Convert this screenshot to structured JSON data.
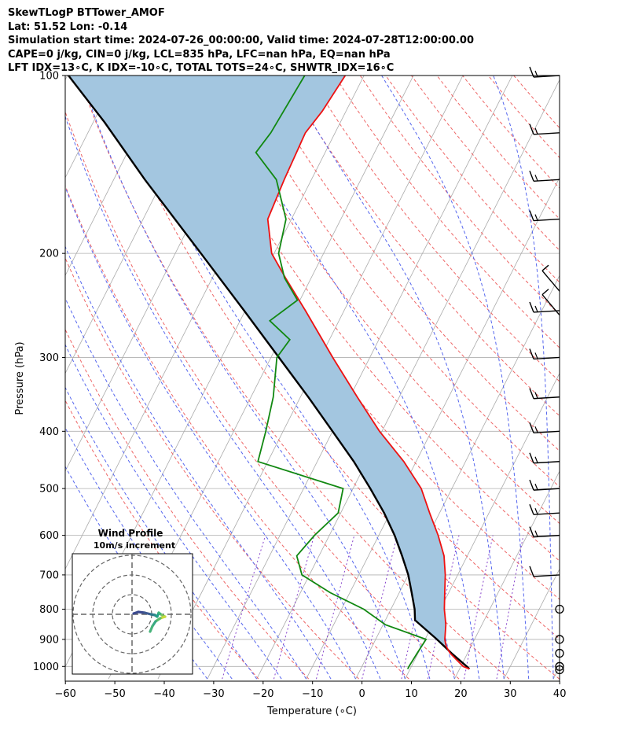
{
  "header": {
    "lines": [
      "SkewTLogP BTTower_AMOF",
      "Lat: 51.52   Lon: -0.14",
      "Simulation start time: 2024-07-26_00:00:00, Valid time: 2024-07-28T12:00:00.00",
      "CAPE=0 j/kg, CIN=0 j/kg, LCL=835 hPa, LFC=nan hPa, EQ=nan hPa",
      "LFT IDX=13∘C, K IDX=-10∘C, TOTAL TOTS=24∘C, SHWTR_IDX=16∘C"
    ]
  },
  "chart_data": {
    "type": "skewt",
    "xlabel": "Temperature (∘C)",
    "ylabel": "Pressure (hPa)",
    "xlim": [
      -60,
      40
    ],
    "ylim": [
      1050,
      100
    ],
    "x_ticks": [
      -60,
      -50,
      -40,
      -30,
      -20,
      -10,
      0,
      10,
      20,
      30,
      40
    ],
    "y_ticks": [
      100,
      200,
      300,
      400,
      500,
      600,
      700,
      800,
      900,
      1000
    ],
    "y_scale": "log",
    "grid": true,
    "colors": {
      "temperature": "#ee1111",
      "dewpoint": "#118811",
      "parcel": "#000000",
      "cape_fill": "#a3c6e0",
      "dry_adiabats": "#ee6666",
      "moist_adiabats": "#5566ee",
      "mixing_ratio": "#8844cc",
      "isotherms": "#aaaaaa"
    },
    "series": [
      {
        "key": "temperature",
        "pressure": [
          1010,
          1000,
          975,
          950,
          925,
          900,
          850,
          800,
          750,
          700,
          650,
          600,
          550,
          500,
          450,
          400,
          350,
          300,
          250,
          220,
          200,
          175,
          150,
          125,
          115,
          100
        ],
        "temperature": [
          22,
          20.5,
          18.5,
          16.5,
          15,
          14,
          12.7,
          10.8,
          9.2,
          7.5,
          5.3,
          2.0,
          -2.0,
          -6.2,
          -12.5,
          -20.5,
          -28.5,
          -37.5,
          -47.8,
          -55.2,
          -60.5,
          -64.8,
          -65.5,
          -66,
          -64.8,
          -63.8
        ]
      },
      {
        "key": "dewpoint",
        "pressure": [
          1010,
          1000,
          950,
          900,
          850,
          800,
          750,
          700,
          650,
          600,
          550,
          500,
          450,
          400,
          350,
          300,
          280,
          260,
          240,
          220,
          200,
          175,
          150,
          135,
          125,
          100
        ],
        "temperature": [
          9.5,
          9.5,
          9.8,
          10.2,
          0.5,
          -5.5,
          -14,
          -21.5,
          -24.5,
          -23,
          -20.5,
          -22,
          -42,
          -43.5,
          -45.5,
          -48.8,
          -48,
          -54,
          -50.5,
          -55.4,
          -59.1,
          -61.1,
          -67.1,
          -74,
          -73,
          -72
        ]
      },
      {
        "key": "parcel",
        "pressure": [
          1010,
          1000,
          950,
          900,
          835,
          800,
          750,
          700,
          650,
          600,
          550,
          500,
          450,
          400,
          350,
          300,
          250,
          200,
          150,
          120,
          100
        ],
        "temperature": [
          22,
          21.2,
          16.8,
          12.4,
          6.0,
          4.8,
          2.5,
          0.0,
          -3.2,
          -6.8,
          -11.2,
          -16.5,
          -22.6,
          -30.0,
          -38.4,
          -48.4,
          -60.2,
          -74.8,
          -93.7,
          -107.7,
          -119.8
        ]
      }
    ],
    "wind_barbs_pressure": [
      100,
      125,
      150,
      175,
      200,
      225,
      250,
      300,
      350,
      400,
      450,
      500,
      550,
      600,
      700,
      800,
      900,
      950,
      1000,
      1013
    ],
    "surface_calm": [
      800,
      900,
      950,
      1000,
      1013
    ],
    "inset": {
      "title": "Wind Profile",
      "subtitle": "10m/s increment",
      "rings": [
        10,
        20,
        30
      ]
    }
  }
}
